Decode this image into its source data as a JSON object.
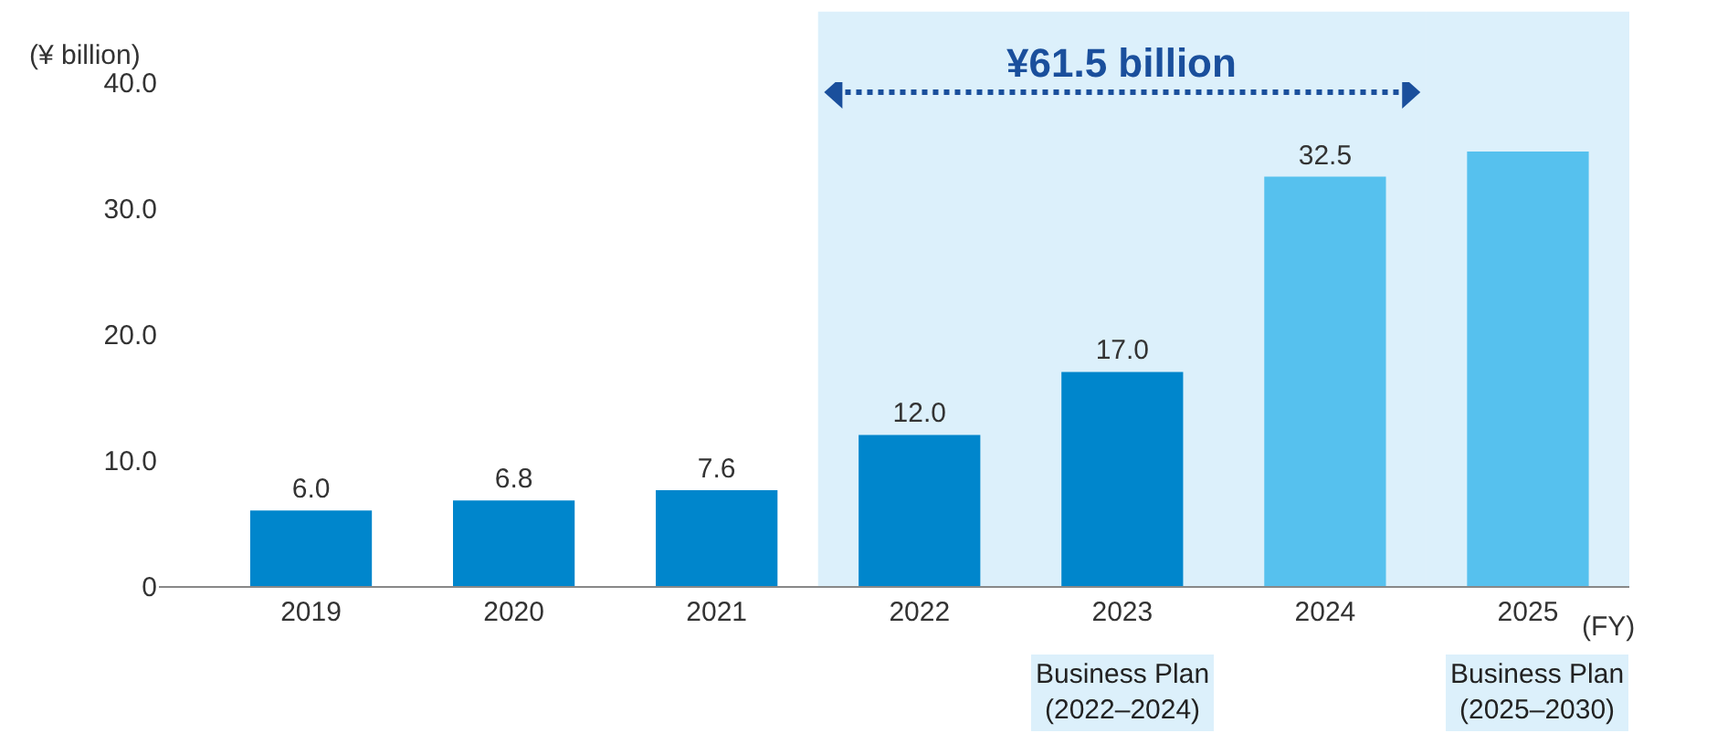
{
  "chart_data": {
    "type": "bar",
    "ylabel": "(¥ billion)",
    "categories": [
      "2019",
      "2020",
      "2021",
      "2022",
      "2023",
      "2024",
      "2025"
    ],
    "values": [
      6.0,
      6.8,
      7.6,
      12.0,
      17.0,
      32.5,
      34.5
    ],
    "colors": [
      "#0086cc",
      "#0086cc",
      "#0086cc",
      "#0086cc",
      "#0086cc",
      "#56c1ee",
      "#56c1ee"
    ],
    "value_labels": [
      "6.0",
      "6.8",
      "7.6",
      "12.0",
      "17.0",
      "32.5",
      null
    ],
    "ylim": [
      0,
      40
    ],
    "yticks": [
      0,
      {
        "value": 10,
        "label": "10.0"
      },
      {
        "value": 20,
        "label": "20.0"
      },
      {
        "value": 30,
        "label": "30.0"
      },
      {
        "value": 40,
        "label": "40.0"
      }
    ],
    "grid": false,
    "bands": [
      {
        "axis": "x",
        "from": "2022",
        "to": "2024",
        "label": "Business Plan\n(2022–2024)",
        "color": "#dcf0fb"
      },
      {
        "axis": "x",
        "from": "2025",
        "to": "2025",
        "label": "Business Plan\n(2025–2030)",
        "color": "#dcf0fb"
      }
    ],
    "annotations": [
      "¥61.5 billion",
      "(FY)"
    ]
  }
}
